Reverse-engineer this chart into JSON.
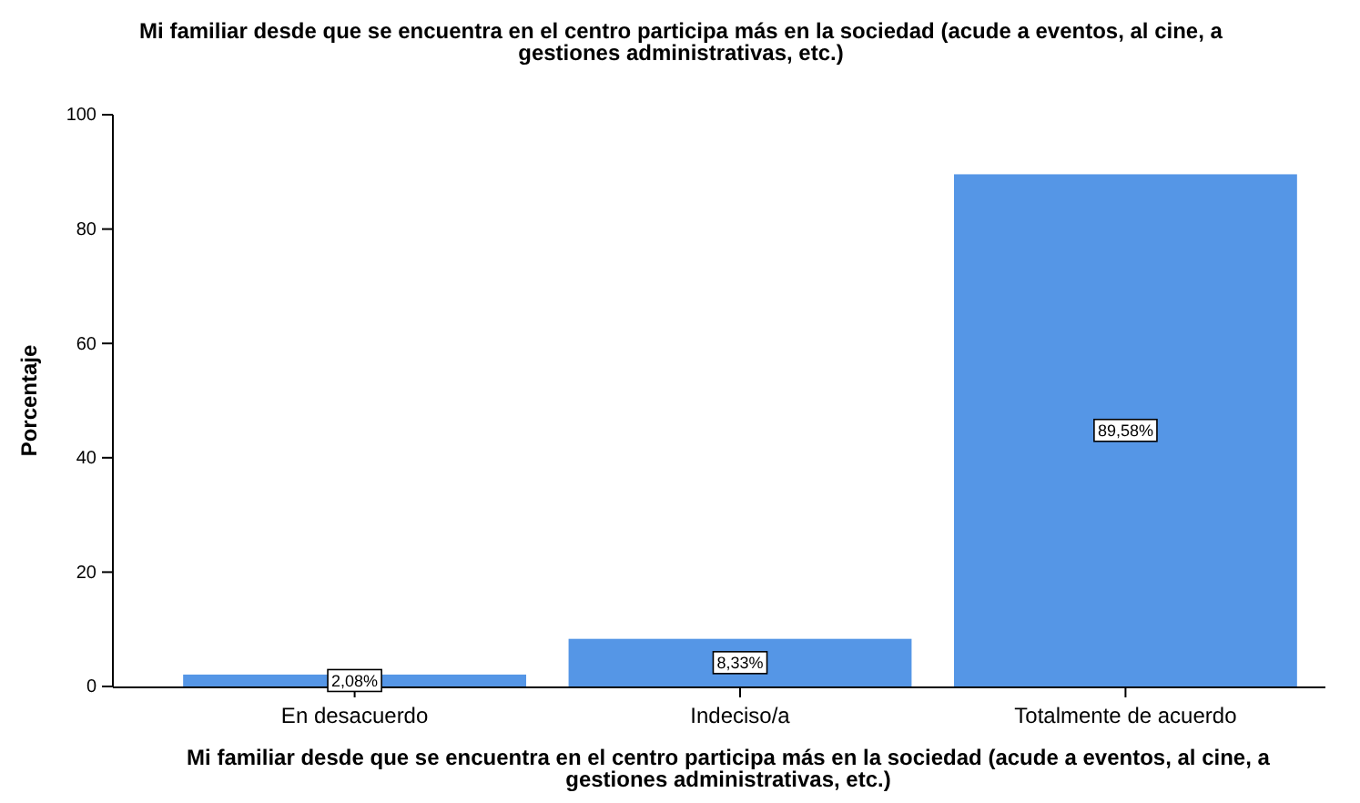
{
  "chart_data": {
    "type": "bar",
    "title": "Mi familiar desde que se encuentra en el centro participa más en la sociedad (acude a eventos, al cine, a gestiones administrativas, etc.)",
    "xlabel": "Mi familiar desde que se encuentra en el centro participa más en la sociedad (acude a eventos, al cine, a gestiones administrativas, etc.)",
    "ylabel": "Porcentaje",
    "categories": [
      "En desacuerdo",
      "Indeciso/a",
      "Totalmente de acuerdo"
    ],
    "values": [
      2.08,
      8.33,
      89.58
    ],
    "value_labels": [
      "2,08%",
      "8,33%",
      "89,58%"
    ],
    "color": "#5596e6",
    "ylim": [
      0,
      100
    ],
    "yticks": [
      0,
      20,
      40,
      60,
      80,
      100
    ],
    "grid": false
  }
}
